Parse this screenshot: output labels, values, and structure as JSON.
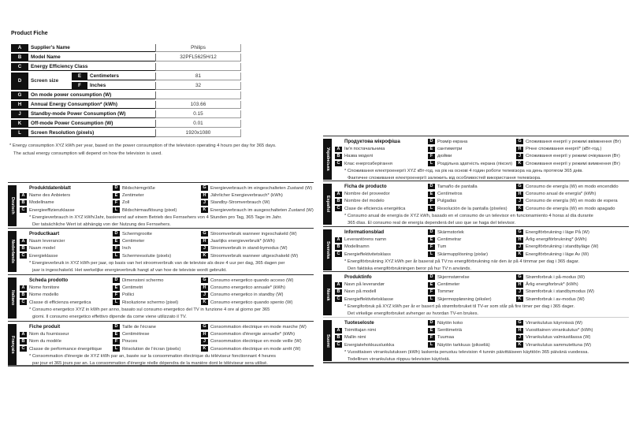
{
  "title": "Product Fiche",
  "fiche": {
    "rows": [
      {
        "letter": "A",
        "label": "Supplier's Name",
        "value": "Philips"
      },
      {
        "letter": "B",
        "label": "Model Name",
        "value": "32PFL5625H/12"
      },
      {
        "letter": "C",
        "label": "Energy Efficiency Class",
        "value": ""
      },
      {
        "letter": "G",
        "label": "On mode power consumption (W)",
        "value": ""
      },
      {
        "letter": "H",
        "label": "Annual Energy Consumption* (kWh)",
        "value": "103.66"
      },
      {
        "letter": "J",
        "label": "Standby-mode Power Consumption (W)",
        "value": "0.15"
      },
      {
        "letter": "K",
        "label": "Off-mode Power Consumption (W)",
        "value": "0.01"
      },
      {
        "letter": "L",
        "label": "Screen Resolution (pixels)",
        "value": "1920x1080"
      }
    ],
    "screen": {
      "letter": "D",
      "label": "Screen size",
      "sub": [
        {
          "letter": "E",
          "label": "Centimeters",
          "value": "81"
        },
        {
          "letter": "F",
          "label": "Inches",
          "value": "32"
        }
      ]
    }
  },
  "footnote": [
    "* Energy consumption XYZ kWh per year, based on the power consumption of the television operating 4 hours per day for 365 days.",
    "The actual energy consumption will depend on how the television is used."
  ],
  "languages": [
    {
      "name": "Deutsch",
      "title": "Produktdatenblatt",
      "A": "Name des Anbieters",
      "B": "Modellname",
      "C": "Energieeffizienzklasse",
      "D": "Bildschirmgröße",
      "E": "Zentimeter",
      "F": "Zoll",
      "L": "Bildschirmauflösung (pixel)",
      "G": "Energieverbrauch im eingeschalteten Zustand (W)",
      "H": "Jährlicher Energieverbrauch* (kWh)",
      "J": "Standby-Stromverbrauch (W)",
      "K": "Energieverbrauch im ausgeschalteten Zustand (W)",
      "footnote": [
        "* Energieverbrauch in XYZ kWh/Jahr, basierend auf einem Betrieb des Fernsehers von 4 Stunden pro Tag, 365 Tage im Jahr.",
        "Der tatsächliche Wert ist abhängig von der Nutzung des Fernsehers."
      ]
    },
    {
      "name": "Nederlands",
      "title": "Productkaart",
      "A": "Naam leverancier",
      "B": "Naam model",
      "C": "Energieklasse",
      "D": "Schermgrootte",
      "E": "Centimeter",
      "F": "Inch",
      "L": "Schermresolutie (pixels)",
      "G": "Stroomverbruik wanneer ingeschakeld (W)",
      "H": "Jaarlijks energieverbruik* (kWh)",
      "J": "Stroomverbruik in stand-bymodus (W)",
      "K": "Stroomverbruik wanneer uitgeschakeld (W)",
      "footnote": [
        "* Energieverbruik in XYZ kWh per jaar, op basis van het stroomverbruik van de televisie als deze 4 uur per dag, 365 dagen per",
        "jaar is ingeschakeld. Het werkelijke energieverbruik hangt af van hoe de televisie wordt gebruikt."
      ]
    },
    {
      "name": "Italiano",
      "title": "Scheda prodotto",
      "A": "Nome fornitore",
      "B": "Nome modello",
      "C": "Classe di efficienza energetica",
      "D": "Dimensioni schermo",
      "E": "Centimetri",
      "F": "Pollici",
      "L": "Risoluzione schermo (pixel)",
      "G": "Consumo energetico quando acceso (W)",
      "H": "Consumo energetico annuale* (kWh)",
      "J": "Consumo energetico in standby (W)",
      "K": "Consumo energetico quando spento (W)",
      "footnote": [
        "* Consumo energetico XYZ in kWh per anno, basato sul consumo energetico del TV in funzione 4 ore al giorno per 365",
        "giorni. Il consumo energetico effettivo dipende da come viene utilizzato il TV."
      ]
    },
    {
      "name": "Français",
      "title": "Fiche produit",
      "A": "Nom du fournisseur",
      "B": "Nom du modèle",
      "C": "Classe de performance énergétique",
      "D": "Taille de l'écrane",
      "E": "Centimètrese",
      "F": "Pouces",
      "L": "Résolution de l'écran (pixels)",
      "G": "Consommation électrique en mode marche (W)",
      "H": "Consommation d'énergie annuelle* (kWh)",
      "J": "Consommation électrique en mode veille (W)",
      "K": "Consommation électrique en mode arrêt (W)",
      "footnote": [
        "* Consommation d'énergie de XYZ kWh par an, basée sur la consommation électrique du téléviseur fonctionnant 4 heures",
        "par jour et 365 jours par an. La consommation d'énergie réelle dépendra de la manière dont le téléviseur sera utilisé."
      ]
    },
    {
      "name": "Українська",
      "title": "Продуктова мікрофіша",
      "A": "Ім'я постачальника",
      "B": "Назва моделі",
      "C": "Клас енергозберігання",
      "D": "Розмір екрана",
      "E": "сантиметри",
      "F": "дюйми",
      "L": "Роздільна здатність екрана (піксел)",
      "G": "Споживання енергії у режимі ввімкнення (Вт)",
      "H": "Річне споживання енергії* (кВт-год.)",
      "J": "Споживання енергії у режимі очікування (Вт)",
      "K": "Споживання енергії у режимі вимкнення (Вт)",
      "footnote": [
        "* Споживання електроенергії XYZ кВт-год. на рік на основі 4 годин роботи телевізора на день протягом 365 днів.",
        "Фактичне споживання електроенергії залежить від особливостей використання телевізора."
      ]
    },
    {
      "name": "Español",
      "title": "Ficha de producto",
      "A": "Nombre del proveedor",
      "B": "Nombre del modelo",
      "C": "Clase de eficiencia energética",
      "D": "Tamaño de pantalla",
      "E": "Centímetros",
      "F": "Pulgadas",
      "L": "Resolución de la pantalla (píxeles)",
      "G": "Consumo de energía (W) en modo encendido",
      "H": "Consumo anual de energía* (kWh)",
      "J": "Consumo de energía (W) en modo de espera",
      "K": "Consumo de energía (W) en modo apagado",
      "footnote": [
        "* Consumo anual de energía de XYZ kWh, basado en el consumo de un televisor en funcionamiento 4 horas al día durante",
        "365 días. El consumo real de energía dependerá del uso que se haga del televisor."
      ]
    },
    {
      "name": "Svenska",
      "title": "Informationsblad",
      "A": "Leverantörens namn",
      "B": "Modellnamn",
      "C": "Energieffektivitetsklass",
      "D": "Skärmstorlek",
      "E": "Centimetrar",
      "F": "Tum",
      "L": "Skärmupplösning (pixlar)",
      "G": "Energiförbrukning i läge På (W)",
      "H": "Årlig energiförbrukning* (kWh)",
      "J": "Energiförbrukning i standbyläge (W)",
      "K": "Energiförbrukning i läge Av (W)",
      "footnote": [
        "* Energiförbrukning XYZ kWh per år baserat på TV:ns energiförbrukning när den är på 4 timmar per dag i 365 dagar.",
        "Den faktiska energiförbrukningen beror på hur TV:n används."
      ]
    },
    {
      "name": "Norsk",
      "title": "Produktinfo",
      "A": "Navn på leverandør",
      "B": "Navn på modell",
      "C": "Energieffektivitetsklasse",
      "D": "Skjermstørrelse",
      "E": "Centimeter",
      "F": "Tommer",
      "L": "Skjermoppløsning (piksler)",
      "G": "Strømforbruk i på-modus (W)",
      "H": "Årlig energiforbruk* (kWh)",
      "J": "Strømforbruk i standbymodus (W)",
      "K": "Strømforbruk i av-modus (W)",
      "footnote": [
        "* Energiforbruk på XYZ kWh per år er basert på strømforbruket til TV-er som står på fire timer per dag i 365 dager.",
        "Det virkelige energiforbruket avhenger av hvordan TV-en brukes."
      ]
    },
    {
      "name": "Suomi",
      "title": "Tuoteseloste",
      "A": "Toimittajan nimi",
      "B": "Mallin nimi",
      "C": "Energiatehokkuusluokka",
      "D": "Näytön koko",
      "E": "Senttimetriä",
      "F": "Tuumaa",
      "L": "Näytön tarkkuus (pikseliä)",
      "G": "Virrankulutus käynnissä (W)",
      "H": "Vuosittainen virrankulutus* (kWh)",
      "J": "Virrankulutus valmiustilassa (W)",
      "K": "Virrankulutus sammutettuna (W)",
      "footnote": [
        "* Vuosittaisen virrankulutuksen (kWh) laskenta perustuu television 4 tunnin päivittäiseen käyttöön 365 päivänä vuodessa.",
        "Todellinen virrankulutus riippuu television käytöstä."
      ]
    }
  ]
}
